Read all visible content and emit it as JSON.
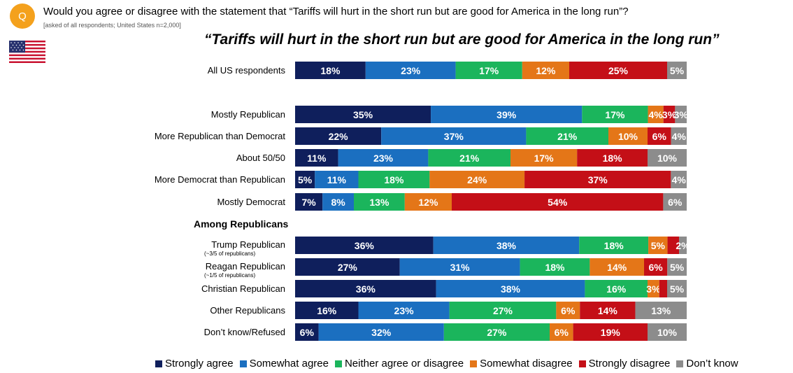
{
  "header": {
    "badge": "Q",
    "question": "Would you agree or disagree with the statement that “Tariffs will hurt in the short run but are good for America in the long run”?",
    "note": "[asked of all respondents; United States n=2,000]"
  },
  "colors": {
    "strongly_agree": "#0f1f5c",
    "somewhat_agree": "#1b6fc0",
    "neither": "#1bb55c",
    "somewhat_disagree": "#e47618",
    "strongly_disagree": "#c40f17",
    "dont_know": "#8c8c8c",
    "badge": "#f4a11d"
  },
  "chart_data": {
    "type": "bar",
    "orientation": "horizontal",
    "stacked": true,
    "title": "“Tariffs will hurt in the short run but are good for America in the long run”",
    "group_label": "Among Republicans",
    "series_names": [
      "Strongly agree",
      "Somewhat agree",
      "Neither agree or disagree",
      "Somewhat disagree",
      "Strongly disagree",
      "Don’t know"
    ],
    "rows": [
      {
        "label": "All US respondents",
        "sub": "",
        "values": [
          18,
          23,
          17,
          12,
          25,
          5
        ]
      },
      {
        "label": "Mostly Republican",
        "sub": "",
        "values": [
          35,
          39,
          17,
          4,
          3,
          3
        ]
      },
      {
        "label": "More Republican than Democrat",
        "sub": "",
        "values": [
          22,
          37,
          21,
          10,
          6,
          4
        ]
      },
      {
        "label": "About 50/50",
        "sub": "",
        "values": [
          11,
          23,
          21,
          17,
          18,
          10
        ]
      },
      {
        "label": "More Democrat than Republican",
        "sub": "",
        "values": [
          5,
          11,
          18,
          24,
          37,
          4
        ]
      },
      {
        "label": "Mostly Democrat",
        "sub": "",
        "values": [
          7,
          8,
          13,
          12,
          54,
          6
        ]
      },
      {
        "label": "Trump Republican",
        "sub": "(~3/5 of republicans)",
        "values": [
          36,
          38,
          18,
          5,
          3,
          2
        ]
      },
      {
        "label": "Reagan Republican",
        "sub": "(~1/5 of republicans)",
        "values": [
          27,
          31,
          18,
          14,
          6,
          5
        ]
      },
      {
        "label": "Christian Republican",
        "sub": "",
        "values": [
          36,
          38,
          16,
          3,
          2,
          5
        ]
      },
      {
        "label": "Other Republicans",
        "sub": "",
        "values": [
          16,
          23,
          27,
          6,
          14,
          13
        ]
      },
      {
        "label": "Don’t know/Refused",
        "sub": "",
        "values": [
          6,
          32,
          27,
          6,
          19,
          10
        ]
      }
    ],
    "hidden_labels": [
      [],
      [],
      [],
      [],
      [],
      [],
      [
        4
      ],
      [],
      [
        4
      ],
      [],
      []
    ],
    "legend_position": "bottom"
  }
}
